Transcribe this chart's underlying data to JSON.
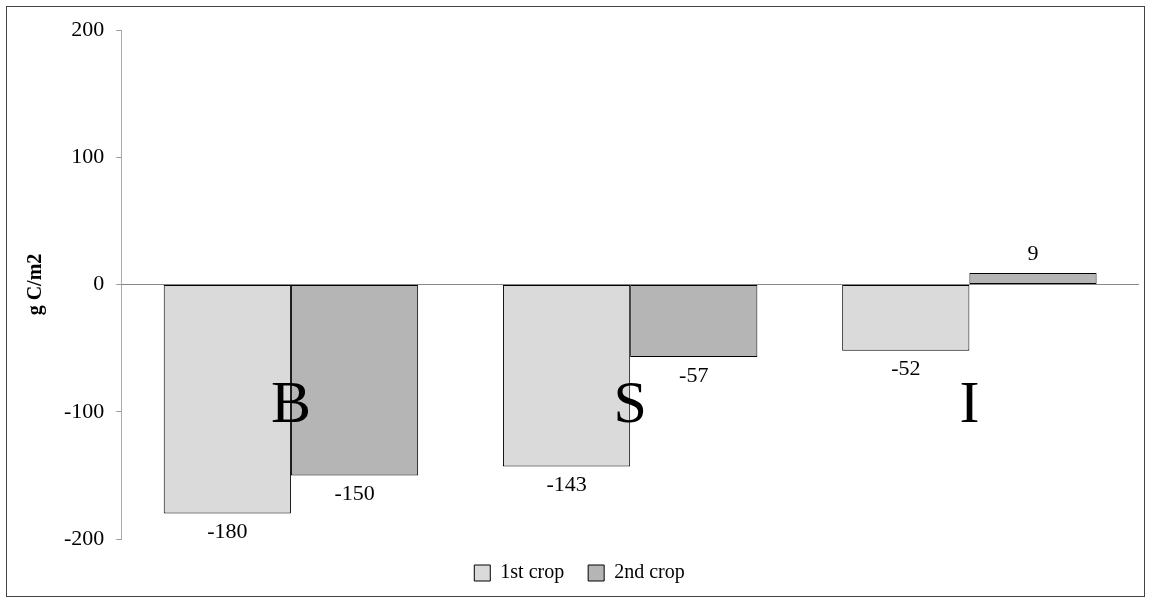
{
  "chart_data": {
    "type": "bar",
    "ylabel": "g C/m2",
    "categories": [
      "B",
      "S",
      "I"
    ],
    "series": [
      {
        "name": "1st crop",
        "color": "#dadada",
        "values": [
          -180,
          -143,
          -52
        ]
      },
      {
        "name": "2nd crop",
        "color": "#b5b5b5",
        "values": [
          -150,
          -57,
          9
        ]
      }
    ],
    "ylim": [
      -200,
      200
    ],
    "yticks": [
      -200,
      -100,
      0,
      100,
      200
    ],
    "data_labels": true,
    "legend": "bottom"
  }
}
